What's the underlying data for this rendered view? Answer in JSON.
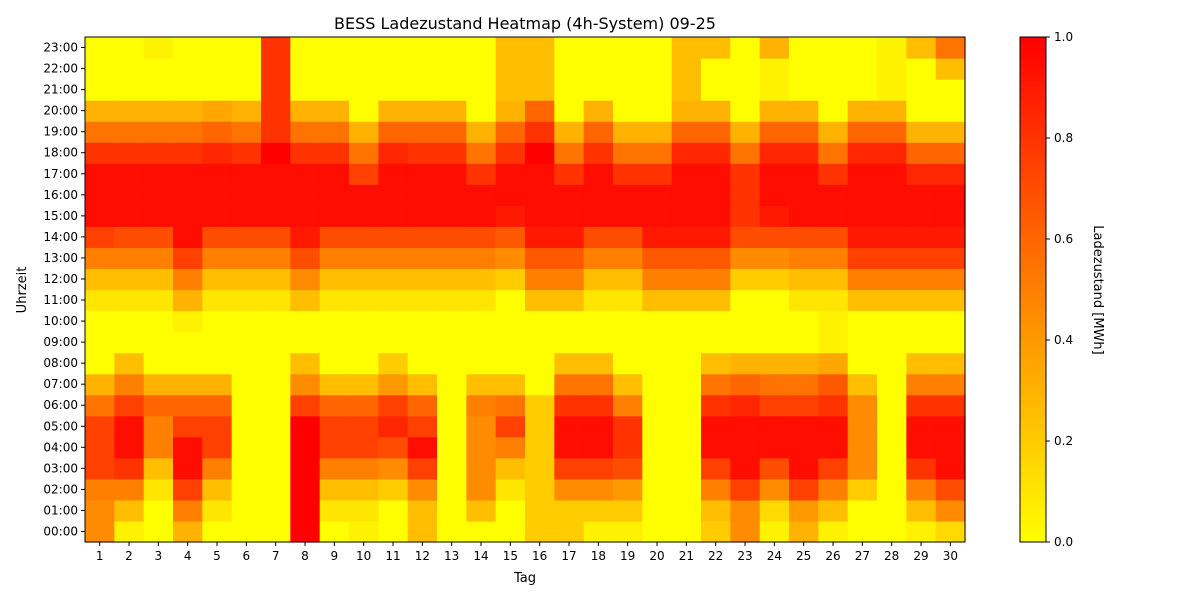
{
  "chart_data": {
    "type": "heatmap",
    "title": "BESS Ladezustand Heatmap (4h-System) 09-25",
    "xlabel": "Tag",
    "ylabel": "Uhrzeit",
    "x_categories": [
      "1",
      "2",
      "3",
      "4",
      "5",
      "6",
      "7",
      "8",
      "9",
      "10",
      "11",
      "12",
      "13",
      "14",
      "15",
      "16",
      "17",
      "18",
      "19",
      "20",
      "21",
      "22",
      "23",
      "24",
      "25",
      "26",
      "27",
      "28",
      "29",
      "30"
    ],
    "y_categories": [
      "00:00",
      "01:00",
      "02:00",
      "03:00",
      "04:00",
      "05:00",
      "06:00",
      "07:00",
      "08:00",
      "09:00",
      "10:00",
      "11:00",
      "12:00",
      "13:00",
      "14:00",
      "15:00",
      "16:00",
      "17:00",
      "18:00",
      "19:00",
      "20:00",
      "21:00",
      "22:00",
      "23:00"
    ],
    "colorbar": {
      "label": "Ladezustand [MWh]",
      "range": [
        0.0,
        1.0
      ],
      "ticks": [
        "0.0",
        "0.2",
        "0.4",
        "0.6",
        "0.8",
        "1.0"
      ],
      "colormap": "autumn_r",
      "color_low": "#ffff00",
      "color_high": "#ff0000"
    },
    "z": [
      [
        0.45,
        0.05,
        0.0,
        0.3,
        0.0,
        0.0,
        0.0,
        1.0,
        0.0,
        0.05,
        0.0,
        0.25,
        0.0,
        0.0,
        0.0,
        0.2,
        0.2,
        0.05,
        0.05,
        0.0,
        0.0,
        0.2,
        0.45,
        0.05,
        0.3,
        0.05,
        0.0,
        0.0,
        0.05,
        0.15
      ],
      [
        0.45,
        0.25,
        0.0,
        0.5,
        0.1,
        0.0,
        0.0,
        1.0,
        0.1,
        0.1,
        0.0,
        0.25,
        0.0,
        0.25,
        0.0,
        0.2,
        0.2,
        0.2,
        0.2,
        0.0,
        0.0,
        0.25,
        0.45,
        0.15,
        0.4,
        0.25,
        0.0,
        0.0,
        0.25,
        0.45
      ],
      [
        0.5,
        0.5,
        0.1,
        0.75,
        0.25,
        0.0,
        0.0,
        1.0,
        0.25,
        0.25,
        0.2,
        0.45,
        0.0,
        0.45,
        0.1,
        0.2,
        0.45,
        0.45,
        0.4,
        0.0,
        0.0,
        0.5,
        0.75,
        0.45,
        0.75,
        0.5,
        0.2,
        0.0,
        0.5,
        0.7
      ],
      [
        0.75,
        0.8,
        0.25,
        0.95,
        0.5,
        0.0,
        0.0,
        1.0,
        0.5,
        0.5,
        0.45,
        0.75,
        0.0,
        0.45,
        0.25,
        0.2,
        0.75,
        0.75,
        0.7,
        0.0,
        0.0,
        0.75,
        0.95,
        0.7,
        0.95,
        0.75,
        0.45,
        0.0,
        0.8,
        0.95
      ],
      [
        0.75,
        0.95,
        0.5,
        0.95,
        0.75,
        0.0,
        0.0,
        1.0,
        0.75,
        0.75,
        0.7,
        0.95,
        0.0,
        0.45,
        0.5,
        0.2,
        0.95,
        0.95,
        0.8,
        0.0,
        0.0,
        0.95,
        0.95,
        0.95,
        0.95,
        0.95,
        0.45,
        0.0,
        0.95,
        0.95
      ],
      [
        0.75,
        0.95,
        0.5,
        0.75,
        0.75,
        0.0,
        0.0,
        1.0,
        0.75,
        0.75,
        0.85,
        0.75,
        0.0,
        0.45,
        0.75,
        0.2,
        0.95,
        0.95,
        0.8,
        0.0,
        0.0,
        0.95,
        0.95,
        0.95,
        0.95,
        0.95,
        0.45,
        0.0,
        0.95,
        0.95
      ],
      [
        0.55,
        0.75,
        0.6,
        0.6,
        0.6,
        0.0,
        0.0,
        0.75,
        0.6,
        0.6,
        0.75,
        0.6,
        0.0,
        0.5,
        0.55,
        0.2,
        0.8,
        0.8,
        0.5,
        0.0,
        0.0,
        0.8,
        0.85,
        0.75,
        0.75,
        0.8,
        0.45,
        0.0,
        0.8,
        0.8
      ],
      [
        0.3,
        0.5,
        0.3,
        0.3,
        0.3,
        0.0,
        0.0,
        0.45,
        0.25,
        0.25,
        0.4,
        0.25,
        0.0,
        0.25,
        0.25,
        0.0,
        0.55,
        0.55,
        0.25,
        0.0,
        0.0,
        0.55,
        0.6,
        0.55,
        0.55,
        0.65,
        0.25,
        0.0,
        0.5,
        0.5
      ],
      [
        0.0,
        0.25,
        0.0,
        0.0,
        0.0,
        0.0,
        0.0,
        0.25,
        0.0,
        0.0,
        0.2,
        0.0,
        0.0,
        0.0,
        0.0,
        0.0,
        0.25,
        0.25,
        0.0,
        0.0,
        0.0,
        0.25,
        0.3,
        0.3,
        0.3,
        0.35,
        0.0,
        0.0,
        0.25,
        0.25
      ],
      [
        0.0,
        0.0,
        0.0,
        0.0,
        0.0,
        0.0,
        0.0,
        0.0,
        0.0,
        0.0,
        0.0,
        0.0,
        0.0,
        0.0,
        0.0,
        0.0,
        0.0,
        0.0,
        0.0,
        0.0,
        0.0,
        0.0,
        0.0,
        0.0,
        0.0,
        0.05,
        0.0,
        0.0,
        0.0,
        0.0
      ],
      [
        0.0,
        0.0,
        0.0,
        0.05,
        0.0,
        0.0,
        0.0,
        0.0,
        0.0,
        0.0,
        0.0,
        0.0,
        0.0,
        0.0,
        0.0,
        0.0,
        0.0,
        0.0,
        0.0,
        0.0,
        0.0,
        0.0,
        0.0,
        0.0,
        0.0,
        0.05,
        0.0,
        0.0,
        0.0,
        0.0
      ],
      [
        0.1,
        0.1,
        0.1,
        0.3,
        0.1,
        0.1,
        0.1,
        0.25,
        0.1,
        0.1,
        0.1,
        0.1,
        0.1,
        0.1,
        0.0,
        0.25,
        0.25,
        0.1,
        0.1,
        0.25,
        0.25,
        0.25,
        0.0,
        0.0,
        0.1,
        0.1,
        0.25,
        0.25,
        0.25,
        0.25
      ],
      [
        0.25,
        0.25,
        0.25,
        0.5,
        0.25,
        0.25,
        0.25,
        0.45,
        0.25,
        0.25,
        0.25,
        0.25,
        0.25,
        0.25,
        0.2,
        0.5,
        0.5,
        0.25,
        0.25,
        0.5,
        0.5,
        0.5,
        0.2,
        0.2,
        0.25,
        0.25,
        0.5,
        0.5,
        0.5,
        0.5
      ],
      [
        0.5,
        0.5,
        0.5,
        0.75,
        0.5,
        0.5,
        0.5,
        0.7,
        0.5,
        0.5,
        0.5,
        0.5,
        0.5,
        0.5,
        0.45,
        0.65,
        0.65,
        0.5,
        0.5,
        0.65,
        0.65,
        0.65,
        0.45,
        0.45,
        0.5,
        0.5,
        0.75,
        0.75,
        0.75,
        0.75
      ],
      [
        0.75,
        0.7,
        0.7,
        0.95,
        0.7,
        0.7,
        0.7,
        0.9,
        0.7,
        0.7,
        0.7,
        0.7,
        0.7,
        0.7,
        0.65,
        0.9,
        0.9,
        0.7,
        0.7,
        0.9,
        0.9,
        0.9,
        0.7,
        0.7,
        0.7,
        0.7,
        0.9,
        0.9,
        0.9,
        0.9
      ],
      [
        0.95,
        0.95,
        0.95,
        0.95,
        0.95,
        0.95,
        0.95,
        0.95,
        0.95,
        0.95,
        0.95,
        0.95,
        0.95,
        0.95,
        0.9,
        0.95,
        0.95,
        0.95,
        0.95,
        0.95,
        0.95,
        0.95,
        0.8,
        0.9,
        0.95,
        0.95,
        0.95,
        0.95,
        0.95,
        0.95
      ],
      [
        0.95,
        0.95,
        0.95,
        0.95,
        0.95,
        0.95,
        0.95,
        0.95,
        0.95,
        0.95,
        0.95,
        0.95,
        0.95,
        0.95,
        0.95,
        0.95,
        0.95,
        0.95,
        0.95,
        0.95,
        0.95,
        0.95,
        0.8,
        0.95,
        0.95,
        0.95,
        0.95,
        0.95,
        0.95,
        0.95
      ],
      [
        0.95,
        0.95,
        0.95,
        0.95,
        0.95,
        0.95,
        0.95,
        0.95,
        0.95,
        0.75,
        0.95,
        0.95,
        0.95,
        0.8,
        0.95,
        0.95,
        0.8,
        0.95,
        0.8,
        0.8,
        0.95,
        0.95,
        0.8,
        0.95,
        0.95,
        0.8,
        0.95,
        0.95,
        0.85,
        0.85
      ],
      [
        0.8,
        0.8,
        0.8,
        0.8,
        0.85,
        0.8,
        1.0,
        0.8,
        0.8,
        0.55,
        0.85,
        0.8,
        0.8,
        0.55,
        0.8,
        1.0,
        0.55,
        0.8,
        0.55,
        0.55,
        0.85,
        0.85,
        0.55,
        0.85,
        0.85,
        0.55,
        0.85,
        0.85,
        0.6,
        0.6
      ],
      [
        0.55,
        0.55,
        0.55,
        0.55,
        0.6,
        0.55,
        0.8,
        0.55,
        0.55,
        0.3,
        0.6,
        0.6,
        0.6,
        0.3,
        0.6,
        0.8,
        0.3,
        0.6,
        0.3,
        0.3,
        0.6,
        0.6,
        0.3,
        0.6,
        0.6,
        0.3,
        0.6,
        0.6,
        0.3,
        0.3
      ],
      [
        0.3,
        0.3,
        0.3,
        0.3,
        0.35,
        0.3,
        0.8,
        0.3,
        0.3,
        0.0,
        0.3,
        0.3,
        0.3,
        0.0,
        0.3,
        0.6,
        0.0,
        0.3,
        0.0,
        0.0,
        0.3,
        0.3,
        0.0,
        0.3,
        0.3,
        0.0,
        0.3,
        0.3,
        0.0,
        0.0
      ],
      [
        0.0,
        0.0,
        0.0,
        0.0,
        0.0,
        0.0,
        0.8,
        0.0,
        0.0,
        0.0,
        0.0,
        0.0,
        0.0,
        0.0,
        0.25,
        0.25,
        0.0,
        0.0,
        0.0,
        0.0,
        0.25,
        0.0,
        0.0,
        0.05,
        0.0,
        0.0,
        0.0,
        0.05,
        0.0,
        0.0
      ],
      [
        0.0,
        0.0,
        0.0,
        0.0,
        0.0,
        0.0,
        0.8,
        0.0,
        0.0,
        0.0,
        0.0,
        0.0,
        0.0,
        0.0,
        0.25,
        0.25,
        0.0,
        0.0,
        0.0,
        0.0,
        0.25,
        0.0,
        0.0,
        0.05,
        0.0,
        0.0,
        0.0,
        0.05,
        0.0,
        0.25
      ],
      [
        0.0,
        0.0,
        0.05,
        0.0,
        0.0,
        0.0,
        0.8,
        0.0,
        0.0,
        0.0,
        0.0,
        0.0,
        0.0,
        0.0,
        0.25,
        0.25,
        0.0,
        0.0,
        0.0,
        0.0,
        0.25,
        0.25,
        0.0,
        0.3,
        0.0,
        0.0,
        0.0,
        0.05,
        0.25,
        0.55
      ]
    ]
  }
}
